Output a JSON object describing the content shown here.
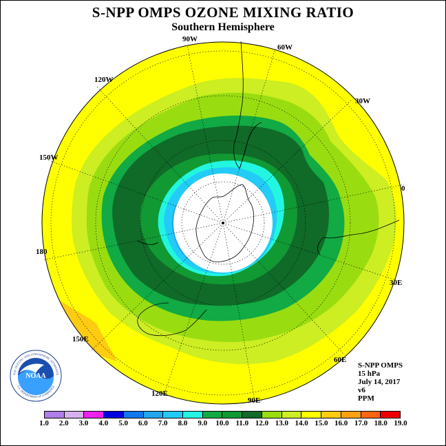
{
  "title": "S-NPP OMPS OZONE MIXING RATIO",
  "subtitle": "Southern Hemisphere",
  "longitude_labels": [
    "0",
    "30W",
    "60W",
    "90W",
    "120W",
    "150W",
    "180",
    "150E",
    "120E",
    "90E",
    "60E",
    "30E"
  ],
  "info": {
    "instrument": "S-NPP OMPS",
    "level": "15 hPa",
    "date": "July 14, 2017",
    "version": "v6",
    "units": "PPM"
  },
  "colorbar": {
    "ticks": [
      "1.0",
      "2.0",
      "3.0",
      "4.0",
      "5.0",
      "6.0",
      "7.0",
      "8.0",
      "9.0",
      "10.0",
      "11.0",
      "12.0",
      "13.0",
      "14.0",
      "15.0",
      "16.0",
      "17.0",
      "18.0",
      "19.0"
    ],
    "colors": [
      "#b07ee8",
      "#d8b0f0",
      "#ee22ee",
      "#0000dd",
      "#1177ee",
      "#22a6f0",
      "#22ccf6",
      "#22f6e0",
      "#11aa44",
      "#119933",
      "#106a28",
      "#99dd11",
      "#ccee22",
      "#ffff00",
      "#ffcc11",
      "#ffa011",
      "#ff6611",
      "#ee0000",
      "#885533"
    ]
  },
  "logo": {
    "text": "NOAA",
    "ring_text": "NATIONAL OCEANIC AND ATMOSPHERIC ADMINISTRATION",
    "ring_text_bottom": "U.S. DEPARTMENT OF COMMERCE"
  }
}
